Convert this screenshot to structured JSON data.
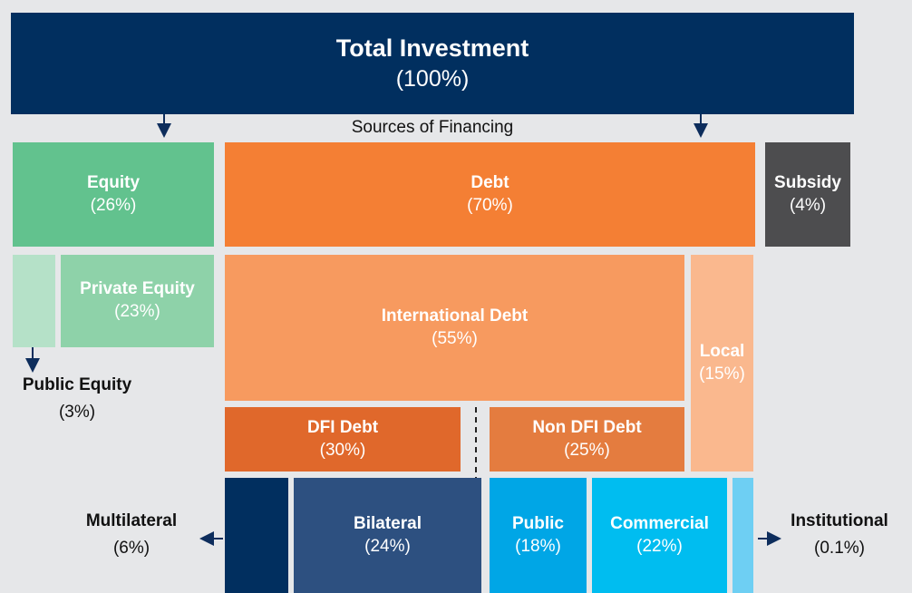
{
  "header": {
    "title": "Total Investment",
    "share": "(100%)",
    "caption": "Sources of Financing"
  },
  "nodes": [
    {
      "label": "Equity",
      "share": "(26%)"
    },
    {
      "label": "Debt",
      "share": "(70%)"
    },
    {
      "label": "Subsidy",
      "share": "(4%)"
    },
    {
      "label": "Private Equity",
      "share": "(23%)"
    },
    {
      "label": "Public Equity",
      "share": "(3%)"
    },
    {
      "label": "International Debt",
      "share": "(55%)"
    },
    {
      "label": "Local",
      "share": "(15%)"
    },
    {
      "label": "DFI Debt",
      "share": "(30%)"
    },
    {
      "label": "Non DFI Debt",
      "share": "(25%)"
    },
    {
      "label": "Multilateral",
      "share": "(6%)"
    },
    {
      "label": "Bilateral",
      "share": "(24%)"
    },
    {
      "label": "Public",
      "share": "(18%)"
    },
    {
      "label": "Commercial",
      "share": "(22%)"
    },
    {
      "label": "Institutional",
      "share": "(0.1%)"
    }
  ]
}
